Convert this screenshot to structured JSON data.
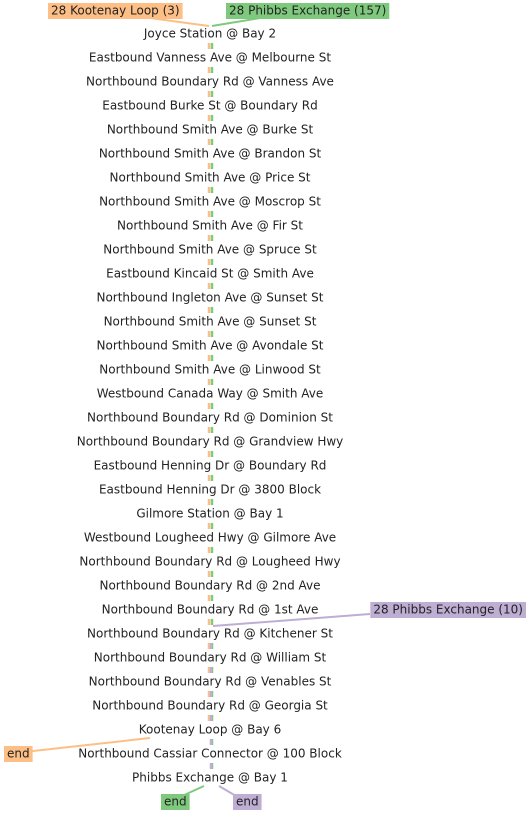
{
  "routes": [
    {
      "id": "orange",
      "label": "28 Kootenay Loop (3)",
      "color": "#fdbf85",
      "end_label": "end",
      "from_stop": 0,
      "to_stop": 29
    },
    {
      "id": "green",
      "label": "28 Phibbs Exchange (157)",
      "color": "#7fc97f",
      "end_label": "end",
      "from_stop": 0,
      "to_stop": 31
    },
    {
      "id": "purple",
      "label": "28 Phibbs Exchange (10)",
      "color": "#beaed4",
      "end_label": "end",
      "from_stop": 25,
      "to_stop": 31
    }
  ],
  "stops": [
    "Joyce Station @ Bay 2",
    "Eastbound Vanness Ave @ Melbourne St",
    "Northbound Boundary Rd @ Vanness Ave",
    "Eastbound Burke St @ Boundary Rd",
    "Northbound Smith Ave @ Burke St",
    "Northbound Smith Ave @ Brandon St",
    "Northbound Smith Ave @ Price St",
    "Northbound Smith Ave @ Moscrop St",
    "Northbound Smith Ave @ Fir St",
    "Northbound Smith Ave @ Spruce St",
    "Eastbound Kincaid St @ Smith Ave",
    "Northbound Ingleton Ave @ Sunset St",
    "Northbound Smith Ave @ Sunset St",
    "Northbound Smith Ave @ Avondale St",
    "Northbound Smith Ave @ Linwood St",
    "Westbound Canada Way @ Smith Ave",
    "Northbound Boundary Rd @ Dominion St",
    "Northbound Boundary Rd @ Grandview Hwy",
    "Eastbound Henning Dr @ Boundary Rd",
    "Eastbound Henning Dr @ 3800 Block",
    "Gilmore Station @ Bay 1",
    "Westbound Lougheed Hwy @ Gilmore Ave",
    "Northbound Boundary Rd @ Lougheed Hwy",
    "Northbound Boundary Rd @ 2nd Ave",
    "Northbound Boundary Rd @ 1st Ave",
    "Northbound Boundary Rd @ Kitchener St",
    "Northbound Boundary Rd @ William St",
    "Northbound Boundary Rd @ Venables St",
    "Northbound Boundary Rd @ Georgia St",
    "Kootenay Loop @ Bay 6",
    "Northbound Cassiar Connector @ 100 Block",
    "Phibbs Exchange @ Bay 1"
  ]
}
